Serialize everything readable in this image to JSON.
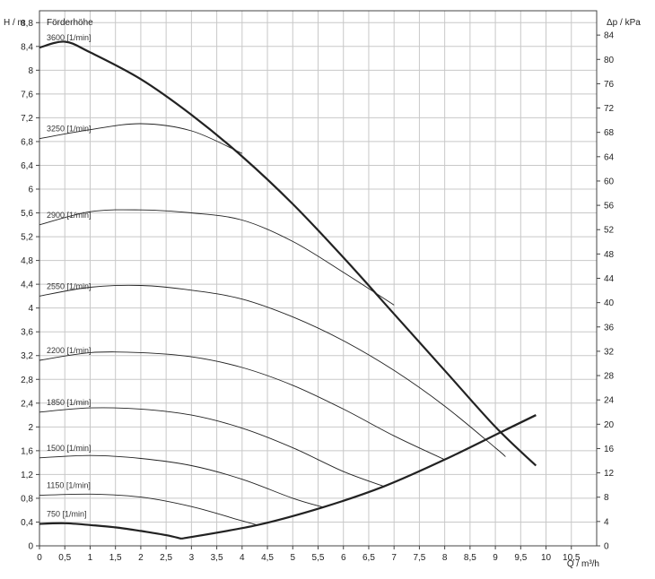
{
  "chart_data": {
    "type": "line",
    "title": "Förderhöhe",
    "xlabel": "Q / m³/h",
    "ylabel_left": "H / m",
    "ylabel_right": "Δp / kPa",
    "xlim": [
      0,
      11
    ],
    "ylim_left": [
      0,
      9
    ],
    "ylim_right": [
      0,
      88
    ],
    "x_ticks": [
      "0",
      "0,5",
      "1",
      "1,5",
      "2",
      "2,5",
      "3",
      "3,5",
      "4",
      "4,5",
      "5",
      "5,5",
      "6",
      "6,5",
      "7",
      "7,5",
      "8",
      "8,5",
      "9",
      "9,5",
      "10",
      "10,5"
    ],
    "y_left_ticks": [
      "0",
      "0,4",
      "0,8",
      "1,2",
      "1,6",
      "2",
      "2,4",
      "2,8",
      "3,2",
      "3,6",
      "4",
      "4,4",
      "4,8",
      "5,2",
      "5,6",
      "6",
      "6,4",
      "6,8",
      "7,2",
      "7,6",
      "8",
      "8,4",
      "8,8"
    ],
    "y_right_ticks": [
      "0",
      "4",
      "8",
      "12",
      "16",
      "20",
      "24",
      "28",
      "32",
      "36",
      "40",
      "44",
      "48",
      "52",
      "56",
      "60",
      "64",
      "68",
      "72",
      "76",
      "80",
      "84"
    ],
    "grid": true,
    "series": [
      {
        "name": "3600 [1/min]",
        "x": [
          0,
          0.5,
          1.0,
          2.0,
          3.0,
          4.0,
          5.0,
          6.0,
          7.0,
          8.0,
          9.0,
          9.8
        ],
        "y": [
          8.38,
          8.48,
          8.3,
          7.85,
          7.25,
          6.55,
          5.75,
          4.85,
          3.9,
          2.95,
          2.0,
          1.35
        ]
      },
      {
        "name": "3250 [1/min]",
        "x": [
          0,
          1.0,
          2.0,
          3.0,
          4.0
        ],
        "y": [
          6.85,
          7.0,
          7.1,
          6.98,
          6.6
        ]
      },
      {
        "name": "2900 [1/min]",
        "x": [
          0,
          1.0,
          2.0,
          3.0,
          4.0,
          5.0,
          6.0,
          7.0
        ],
        "y": [
          5.4,
          5.62,
          5.65,
          5.6,
          5.48,
          5.12,
          4.6,
          4.05
        ]
      },
      {
        "name": "2550 [1/min]",
        "x": [
          0,
          1.0,
          2.0,
          3.0,
          4.0,
          5.0,
          6.0,
          7.0,
          8.0,
          9.0,
          9.2
        ],
        "y": [
          4.2,
          4.35,
          4.38,
          4.3,
          4.15,
          3.85,
          3.45,
          2.95,
          2.35,
          1.65,
          1.5
        ]
      },
      {
        "name": "2200 [1/min]",
        "x": [
          0,
          1.0,
          2.0,
          3.0,
          4.0,
          5.0,
          6.0,
          7.0,
          8.0
        ],
        "y": [
          3.12,
          3.25,
          3.25,
          3.18,
          3.0,
          2.7,
          2.3,
          1.85,
          1.45
        ]
      },
      {
        "name": "1850 [1/min]",
        "x": [
          0,
          1.0,
          2.0,
          3.0,
          4.0,
          5.0,
          6.0,
          6.8
        ],
        "y": [
          2.25,
          2.32,
          2.3,
          2.2,
          1.98,
          1.65,
          1.25,
          1.0
        ]
      },
      {
        "name": "1500 [1/min]",
        "x": [
          0,
          1.0,
          2.0,
          3.0,
          4.0,
          5.0,
          5.6
        ],
        "y": [
          1.48,
          1.52,
          1.47,
          1.35,
          1.12,
          0.8,
          0.65
        ]
      },
      {
        "name": "1150 [1/min]",
        "x": [
          0,
          1.0,
          2.0,
          3.0,
          4.0,
          4.3
        ],
        "y": [
          0.85,
          0.87,
          0.82,
          0.66,
          0.42,
          0.35
        ]
      },
      {
        "name": "750 [1/min]",
        "x": [
          0,
          0.5,
          1.0,
          1.5,
          2.0,
          2.5,
          2.8
        ],
        "y": [
          0.37,
          0.38,
          0.35,
          0.31,
          0.25,
          0.18,
          0.12
        ]
      },
      {
        "name": "",
        "x": [
          2.8,
          4.3,
          5.6,
          6.8,
          8.0,
          9.2,
          9.8
        ],
        "y": [
          0.12,
          0.35,
          0.65,
          1.0,
          1.45,
          1.95,
          2.2
        ]
      },
      {
        "name": "",
        "x": [
          9.2,
          9.8
        ],
        "y": [
          1.95,
          2.2
        ]
      }
    ]
  }
}
